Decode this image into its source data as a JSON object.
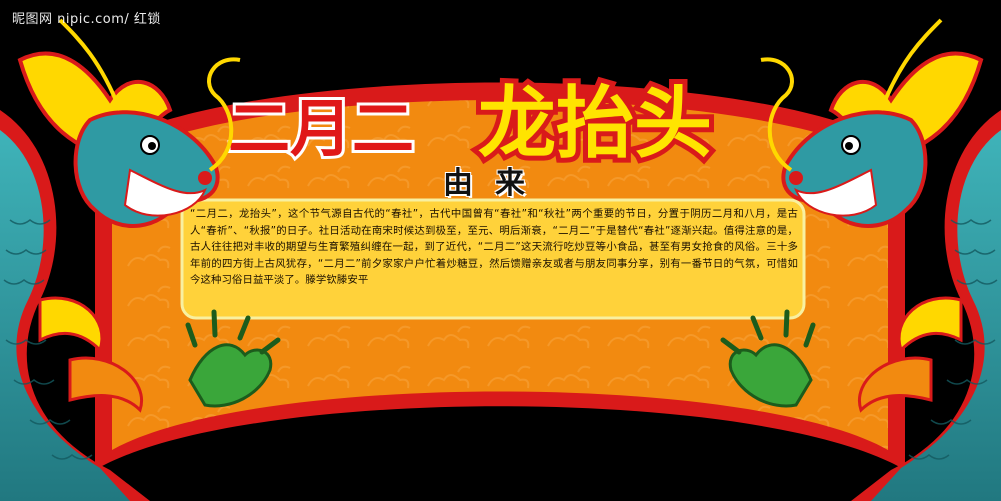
{
  "watermark": "昵图网 nipic.com/ 红锁",
  "title": {
    "part1": "二月二",
    "part2": "龙抬头"
  },
  "subtitle": "由来",
  "body": "“二月二，龙抬头”，这个节气源自古代的“春社”，古代中国曾有“春社”和“秋社”两个重要的节日，分置于阴历二月和八月，是古人“春祈”、“秋报”的日子。社日活动在南宋时候达到极至，至元、明后渐衰，“二月二”于是替代“春社”逐渐兴起。值得注意的是，古人往往把对丰收的期望与生育繁殖纠缠在一起，到了近代，“二月二”这天流行吃炒豆等小食品，甚至有男女抢食的风俗。三十多年前的四方街上古风犹存，“二月二”前夕家家户户忙着炒糖豆，然后馈赠亲友或者与朋友同事分享，别有一番节日的气氛，可惜如今这种习俗日益平淡了。滕学钦滕安平",
  "colors": {
    "background": "#000000",
    "border_red": "#d91a1a",
    "banner_orange": "#f28a10",
    "title_red": "#e01818",
    "title_yellow": "#ffe400",
    "panel_yellow": "#ffd23a",
    "dragon_teal": "#2f9aa3",
    "dragon_yellow": "#ffd800",
    "claw_green": "#3aa63a"
  },
  "icons": [
    "dragon-left",
    "dragon-right",
    "cloud-pattern"
  ]
}
